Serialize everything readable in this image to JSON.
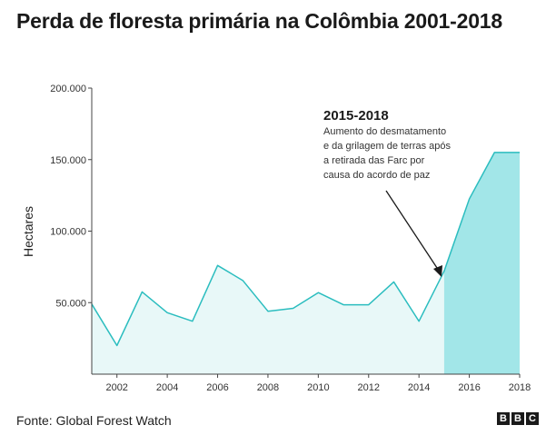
{
  "chart_data": {
    "type": "area",
    "title": "Perda de floresta primária na Colômbia 2001-2018",
    "ylabel": "Hectares",
    "xlabel": "",
    "x": [
      2001,
      2002,
      2003,
      2004,
      2005,
      2006,
      2007,
      2008,
      2009,
      2010,
      2011,
      2012,
      2013,
      2014,
      2015,
      2016,
      2017,
      2018
    ],
    "values": [
      49000,
      20000,
      57500,
      43000,
      37000,
      76000,
      65500,
      44000,
      46000,
      57000,
      48500,
      48500,
      64500,
      37000,
      72000,
      122500,
      155000,
      155000
    ],
    "xlim": [
      2001,
      2018
    ],
    "ylim": [
      0,
      200000
    ],
    "x_ticks": [
      "2002",
      "2004",
      "2006",
      "2008",
      "2010",
      "2012",
      "2014",
      "2016",
      "2018"
    ],
    "y_ticks": [
      "50.000",
      "100.000",
      "150.000",
      "200.000"
    ],
    "highlight_range": [
      2015,
      2018
    ],
    "annotation": {
      "title": "2015-2018",
      "lines": [
        "Aumento do desmatamento",
        "e da grilagem de terras após",
        "a retirada das Farc por",
        "causa do acordo de paz"
      ]
    },
    "colors": {
      "line": "#2bbdbf",
      "area_light": "#e8f8f8",
      "area_highlight": "#a2e6e8",
      "axis": "#444444"
    }
  },
  "source": "Fonte: Global Forest Watch",
  "logo": [
    "B",
    "B",
    "C"
  ]
}
